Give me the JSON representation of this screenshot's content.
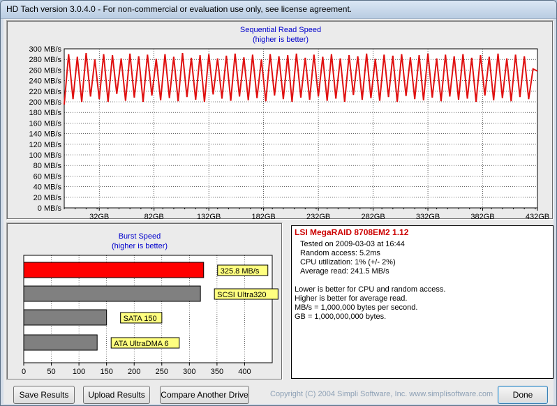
{
  "window": {
    "title": "HD Tach version 3.0.4.0  - For non-commercial or evaluation use only, see license agreement."
  },
  "sequential": {
    "title": "Sequential Read Speed",
    "subtitle": "(higher is better)",
    "y_ticks": [
      "300 MB/s",
      "280 MB/s",
      "260 MB/s",
      "240 MB/s",
      "220 MB/s",
      "200 MB/s",
      "180 MB/s",
      "160 MB/s",
      "140 MB/s",
      "120 MB/s",
      "100 MB/s",
      "80 MB/s",
      "60 MB/s",
      "40 MB/s",
      "20 MB/s",
      "0 MB/s"
    ],
    "x_ticks": [
      "32GB",
      "82GB",
      "132GB",
      "182GB",
      "232GB",
      "282GB",
      "332GB",
      "382GB",
      "432GB"
    ]
  },
  "burst": {
    "title": "Burst Speed",
    "subtitle": "(higher is better)",
    "x_ticks": [
      "0",
      "50",
      "100",
      "150",
      "200",
      "250",
      "300",
      "350",
      "400"
    ]
  },
  "info": {
    "drive": "LSI MegaRAID 8708EM2 1.12",
    "tested": "Tested on 2009-03-03 at 16:44",
    "random_access": "Random access: 5.2ms",
    "cpu": "CPU utilization: 1% (+/- 2%)",
    "avg_read": "Average read: 241.5 MB/s",
    "note1": "Lower is better for CPU and random access.",
    "note2": "Higher is better for average read.",
    "note3": "MB/s = 1,000,000 bytes per second.",
    "note4": "GB = 1,000,000,000 bytes."
  },
  "buttons": {
    "save": "Save Results",
    "upload": "Upload Results",
    "compare": "Compare Another Drive",
    "done": "Done"
  },
  "copyright": "Copyright (C) 2004 Simpli Software, Inc. www.simplisoftware.com",
  "colors": {
    "seq_line": "#e01010",
    "burst_primary": "#ff0000",
    "burst_reference": "#808080",
    "label_bg": "#ffff80",
    "chart_title": "#0000cc"
  },
  "chart_data": [
    {
      "type": "line",
      "title": "Sequential Read Speed",
      "subtitle": "(higher is better)",
      "xlabel": "",
      "ylabel": "",
      "xlim": [
        0,
        432
      ],
      "ylim": [
        0,
        300
      ],
      "x_unit": "GB",
      "y_unit": "MB/s",
      "grid": true,
      "series": [
        {
          "x": [
            0,
            4,
            8,
            12,
            16,
            20,
            24,
            28,
            32,
            36,
            40,
            44,
            48,
            52,
            56,
            60,
            64,
            68,
            72,
            76,
            80,
            84,
            88,
            92,
            96,
            100,
            104,
            108,
            112,
            116,
            120,
            124,
            128,
            132,
            136,
            140,
            144,
            148,
            152,
            156,
            160,
            164,
            168,
            172,
            176,
            180,
            184,
            188,
            192,
            196,
            200,
            204,
            208,
            212,
            216,
            220,
            224,
            228,
            232,
            236,
            240,
            244,
            248,
            252,
            256,
            260,
            264,
            268,
            272,
            276,
            280,
            284,
            288,
            292,
            296,
            300,
            304,
            308,
            312,
            316,
            320,
            324,
            328,
            332,
            336,
            340,
            344,
            348,
            352,
            356,
            360,
            364,
            368,
            372,
            376,
            380,
            384,
            388,
            392,
            396,
            400,
            404,
            408,
            412,
            416,
            420,
            424,
            428,
            432
          ],
          "y": [
            195,
            290,
            205,
            285,
            200,
            292,
            210,
            280,
            205,
            290,
            200,
            288,
            215,
            282,
            202,
            291,
            208,
            286,
            200,
            289,
            212,
            281,
            203,
            290,
            207,
            285,
            201,
            292,
            209,
            283,
            204,
            288,
            200,
            290,
            214,
            282,
            206,
            287,
            202,
            291,
            210,
            284,
            203,
            289,
            207,
            280,
            201,
            290,
            212,
            286,
            205,
            288,
            200,
            291,
            208,
            283,
            204,
            289,
            210,
            285,
            202,
            290,
            206,
            282,
            200,
            288,
            213,
            286,
            204,
            291,
            207,
            281,
            202,
            289,
            209,
            287,
            200,
            290,
            211,
            284,
            205,
            288,
            203,
            291,
            208,
            282,
            201,
            289,
            210,
            286,
            204,
            290,
            206,
            283,
            200,
            288,
            212,
            285,
            203,
            291,
            207,
            282,
            201,
            289,
            209,
            286,
            205,
            262,
            258
          ]
        }
      ]
    },
    {
      "type": "bar",
      "orientation": "horizontal",
      "title": "Burst Speed",
      "subtitle": "(higher is better)",
      "xlim": [
        0,
        450
      ],
      "grid": true,
      "categories": [
        "325.8 MB/s",
        "SCSI Ultra320",
        "SATA 150",
        "ATA UltraDMA 6"
      ],
      "values": [
        325.8,
        320,
        150,
        133
      ]
    }
  ]
}
